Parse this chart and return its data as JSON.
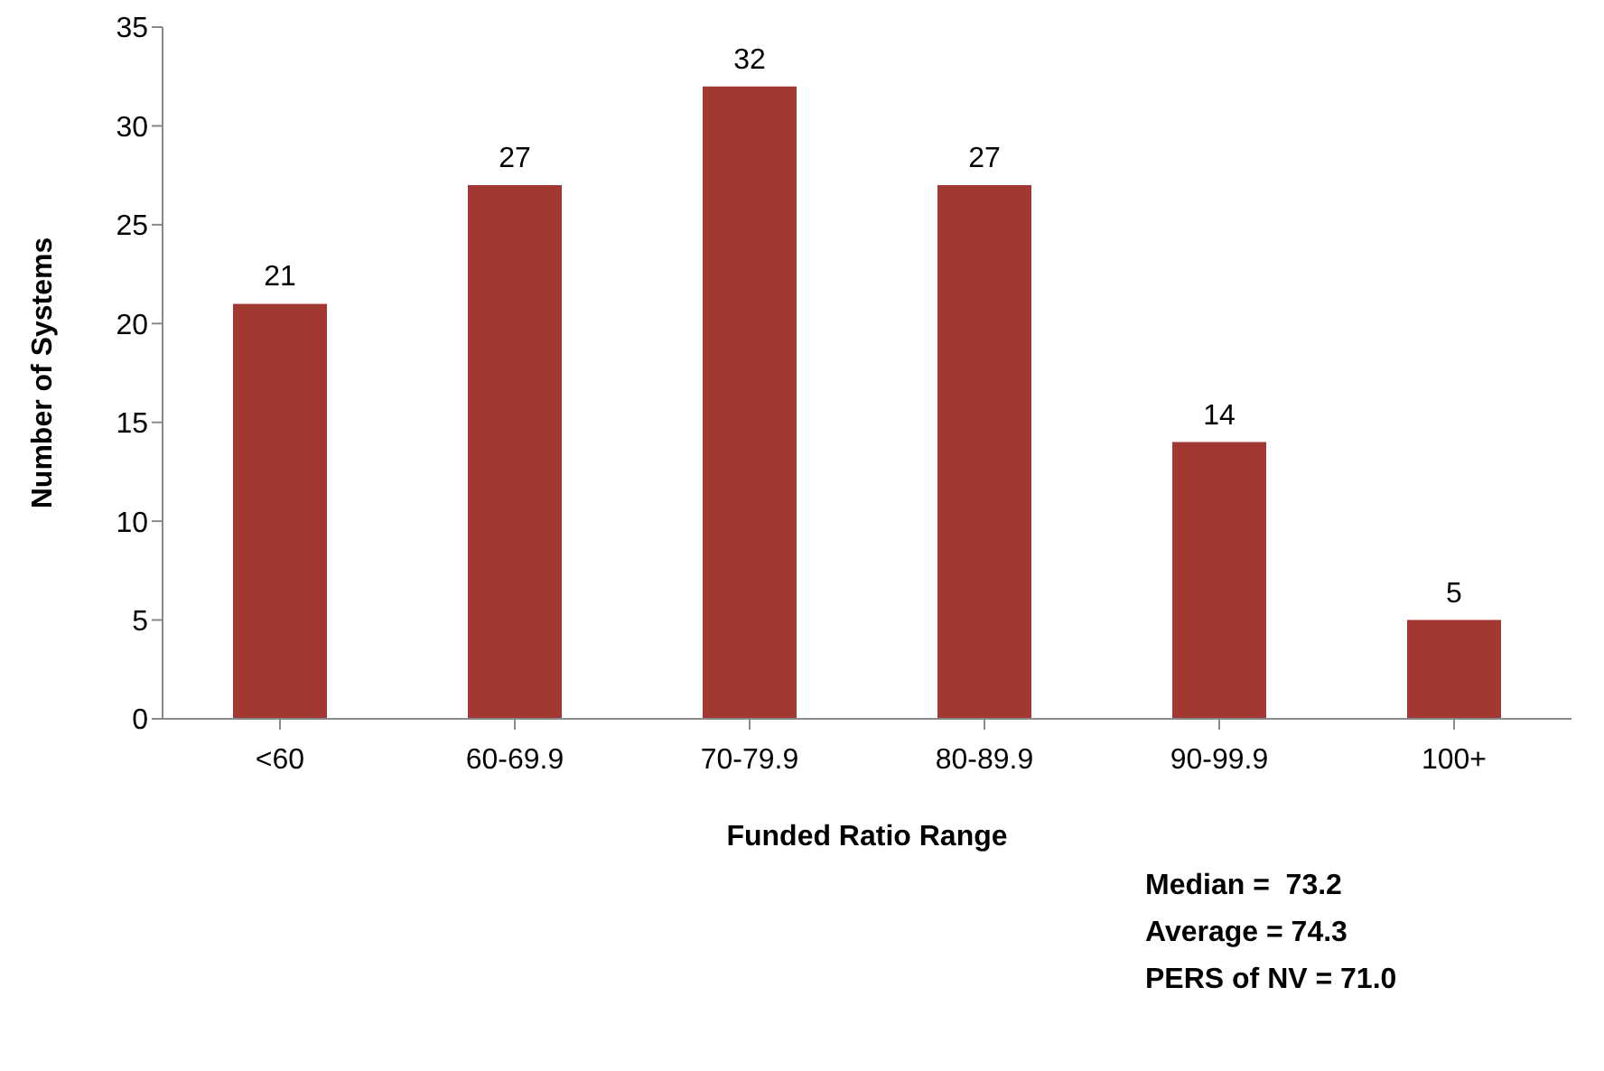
{
  "chart_data": {
    "type": "bar",
    "xlabel": "Funded Ratio Range",
    "ylabel": "Number of Systems",
    "categories": [
      "<60",
      "60-69.9",
      "70-79.9",
      "80-89.9",
      "90-99.9",
      "100+"
    ],
    "values": [
      21,
      27,
      32,
      27,
      14,
      5
    ],
    "color": "#a23832",
    "ylim": [
      0,
      35
    ],
    "yticks": [
      0,
      5,
      10,
      15,
      20,
      25,
      30,
      35
    ],
    "grid": false,
    "data_labels": true,
    "annotations": [
      "Median =  73.2",
      "Average = 74.3",
      "PERS of NV = 71.0"
    ]
  }
}
